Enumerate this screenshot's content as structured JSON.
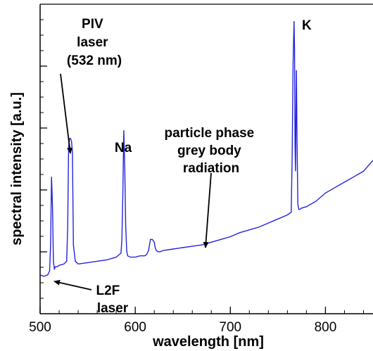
{
  "chart_data": {
    "type": "line",
    "xlabel": "wavelength [nm]",
    "ylabel": "spectral intensity [a.u.]",
    "xlim": [
      500,
      850
    ],
    "ylim": [
      0,
      1
    ],
    "x_ticks": [
      500,
      600,
      700,
      800
    ],
    "y_tick_labels_shown": false,
    "grid": false,
    "series_color": "#2323e0",
    "series": [
      {
        "x": [
          500,
          504,
          508,
          510,
          511,
          512,
          513,
          514,
          515,
          516,
          518,
          520,
          525,
          528,
          529,
          530,
          531,
          532,
          533,
          534,
          535,
          537,
          540,
          550,
          560,
          570,
          580,
          585,
          586,
          587,
          588,
          589,
          590,
          591,
          592,
          595,
          600,
          605,
          610,
          612,
          614,
          615,
          616,
          618,
          620,
          621,
          622,
          624,
          626,
          630,
          640,
          650,
          660,
          670,
          680,
          690,
          700,
          710,
          720,
          730,
          740,
          750,
          760,
          764,
          765,
          766,
          767,
          767.5,
          768,
          768.5,
          769,
          769.5,
          770,
          771,
          772,
          773,
          775,
          780,
          790,
          800,
          810,
          820,
          830,
          840,
          850
        ],
        "y": [
          0.07,
          0.065,
          0.07,
          0.085,
          0.18,
          0.43,
          0.32,
          0.12,
          0.09,
          0.1,
          0.1,
          0.105,
          0.11,
          0.12,
          0.25,
          0.54,
          0.57,
          0.57,
          0.56,
          0.52,
          0.18,
          0.12,
          0.11,
          0.115,
          0.12,
          0.125,
          0.135,
          0.15,
          0.2,
          0.37,
          0.6,
          0.46,
          0.25,
          0.16,
          0.14,
          0.135,
          0.135,
          0.14,
          0.14,
          0.145,
          0.16,
          0.18,
          0.2,
          0.2,
          0.19,
          0.17,
          0.16,
          0.155,
          0.155,
          0.16,
          0.165,
          0.17,
          0.175,
          0.18,
          0.19,
          0.2,
          0.21,
          0.225,
          0.235,
          0.245,
          0.26,
          0.275,
          0.29,
          0.3,
          0.5,
          0.85,
          1.0,
          0.9,
          0.55,
          0.45,
          0.65,
          0.82,
          0.6,
          0.33,
          0.31,
          0.31,
          0.315,
          0.32,
          0.34,
          0.37,
          0.39,
          0.41,
          0.43,
          0.45,
          0.49
        ]
      }
    ],
    "annotations": [
      {
        "lines": [
          "PIV",
          "laser",
          "(532 nm)"
        ]
      },
      {
        "lines": [
          "Na"
        ]
      },
      {
        "lines": [
          "particle phase",
          "grey body",
          "radiation"
        ]
      },
      {
        "lines": [
          "K"
        ]
      },
      {
        "lines": [
          "L2F",
          "laser"
        ]
      }
    ]
  }
}
